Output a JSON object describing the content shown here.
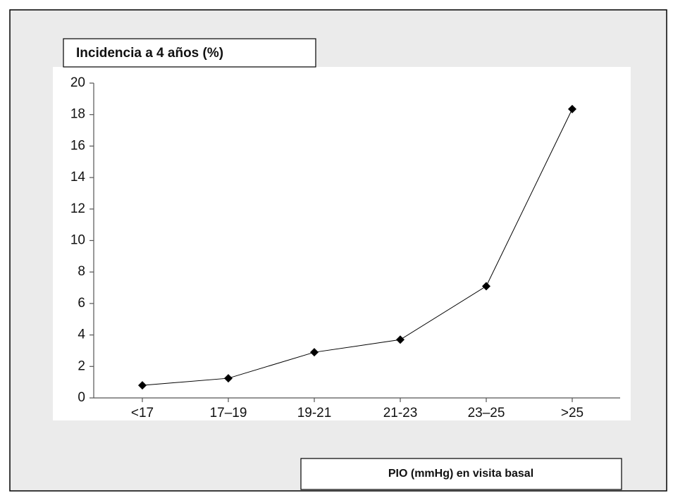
{
  "chart_data": {
    "type": "line",
    "title": "Incidencia a 4 años (%)",
    "x_label": "PIO (mmHg) en visita basal",
    "categories": [
      "<17",
      "17–19",
      "19-21",
      "21-23",
      "23–25",
      ">25"
    ],
    "values": [
      0.8,
      1.25,
      2.9,
      3.7,
      7.1,
      18.35
    ],
    "color": "#000000",
    "marker": "diamond",
    "ylim": [
      0,
      20
    ],
    "yticks": [
      0,
      2,
      4,
      6,
      8,
      10,
      12,
      14,
      16,
      18,
      20
    ],
    "grid": false
  }
}
